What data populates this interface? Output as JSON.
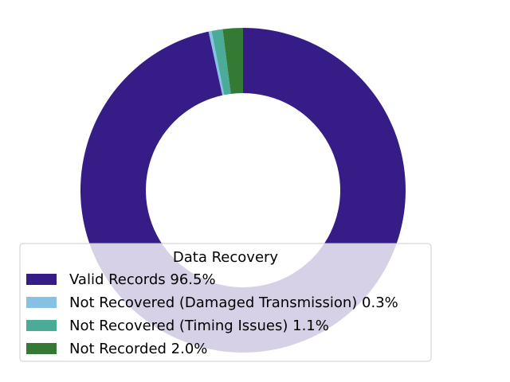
{
  "chart_data": {
    "type": "pie",
    "style": "donut",
    "start_angle_deg": 90,
    "direction": "clockwise",
    "legend": {
      "title": "Data Recovery",
      "placement": "lower-center"
    },
    "slices": [
      {
        "label": "Valid Records 96.5%",
        "value": 96.5,
        "color": "#351c87"
      },
      {
        "label": "Not Recovered (Damaged Transmission) 0.3%",
        "value": 0.3,
        "color": "#85c1e3"
      },
      {
        "label": "Not Recovered (Timing Issues) 1.1%",
        "value": 1.1,
        "color": "#4aab99"
      },
      {
        "label": "Not Recorded 2.0%",
        "value": 2.0,
        "color": "#347a34"
      }
    ]
  }
}
